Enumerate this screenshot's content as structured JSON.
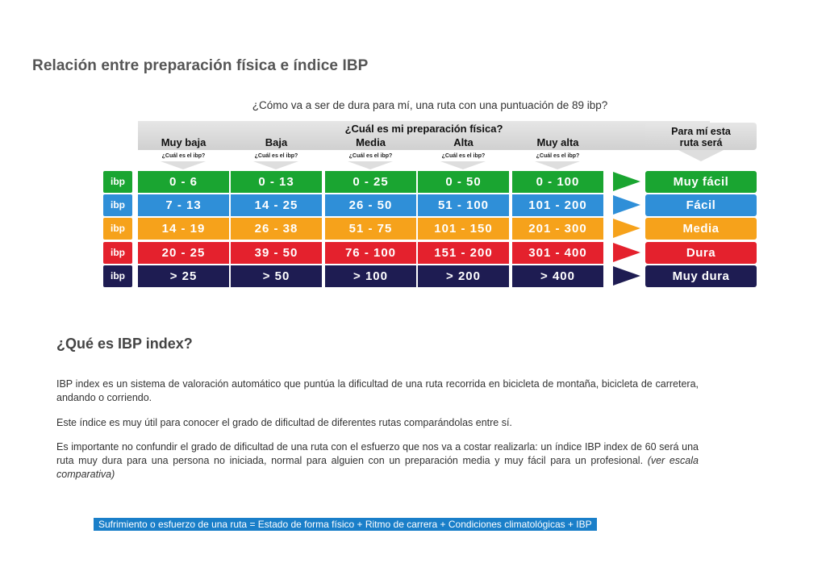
{
  "page_title": "Relación entre preparación física e índice IBP",
  "question": "¿Cómo va a ser de dura para mí, una ruta con una puntuación de 89 ibp?",
  "table": {
    "header_title": "¿Cuál es mi preparación física?",
    "columns": [
      "Muy baja",
      "Baja",
      "Media",
      "Alta",
      "Muy alta"
    ],
    "sub_label": "¿Cuál es el ibp?",
    "result_header_line1": "Para mí esta",
    "result_header_line2": "ruta será",
    "row_tag": "ibp",
    "rows": [
      {
        "color": "#1aa531",
        "cells": [
          "0 - 6",
          "0 - 13",
          "0 - 25",
          "0 - 50",
          "0 - 100"
        ],
        "result": "Muy fácil"
      },
      {
        "color": "#2f8fd8",
        "cells": [
          "7 - 13",
          "14 - 25",
          "26 - 50",
          "51 - 100",
          "101 - 200"
        ],
        "result": "Fácil"
      },
      {
        "color": "#f6a21b",
        "cells": [
          "14 - 19",
          "26 - 38",
          "51 - 75",
          "101 - 150",
          "201 - 300"
        ],
        "result": "Media"
      },
      {
        "color": "#e4212d",
        "cells": [
          "20 - 25",
          "39 - 50",
          "76 - 100",
          "151 - 200",
          "301 - 400"
        ],
        "result": "Dura"
      },
      {
        "color": "#1e1c52",
        "cells": [
          "> 25",
          "> 50",
          "> 100",
          "> 200",
          "> 400"
        ],
        "result": "Muy dura"
      }
    ]
  },
  "section_title": "¿Qué es IBP index?",
  "paragraphs": {
    "p1": "IBP index es un sistema de valoración automático que puntúa la dificultad de una ruta recorrida en bicicleta de montaña, bicicleta de carretera, andando o corriendo.",
    "p2": "Este índice es muy útil para conocer el grado de dificultad de diferentes rutas comparándolas entre sí.",
    "p3": "Es importante no confundir el grado de dificultad de una ruta con el esfuerzo que nos va a costar realizarla: un índice IBP index de 60 será una ruta muy dura para una persona no iniciada, normal para alguien con un preparación media y muy fácil para un profesional.",
    "p3_note": "(ver escala comparativa)"
  },
  "formula": "Sufrimiento o esfuerzo de una ruta = Estado de forma físico + Ritmo de carrera + Condiciones climatológicas + IBP"
}
